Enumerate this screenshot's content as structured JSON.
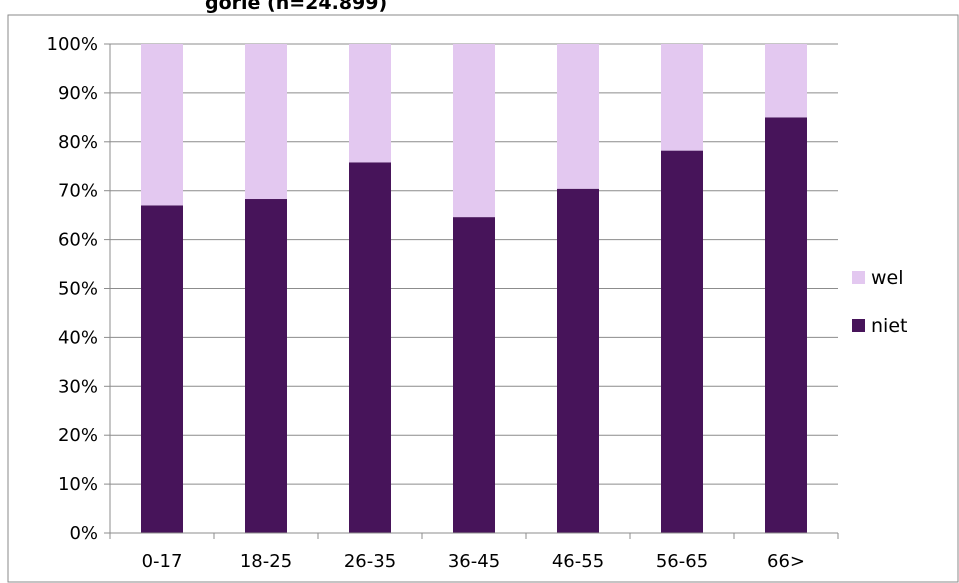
{
  "chart_data": {
    "type": "bar",
    "stacked": true,
    "title": "gorie (n=24.899)",
    "categories": [
      "0-17",
      "18-25",
      "26-35",
      "36-45",
      "46-55",
      "56-65",
      "66>"
    ],
    "series": [
      {
        "name": "niet",
        "values": [
          67,
          68.3,
          75.8,
          64.6,
          70.4,
          78.2,
          85
        ],
        "color": "#47145a"
      },
      {
        "name": "wel",
        "values": [
          33,
          31.7,
          24.2,
          35.4,
          29.6,
          21.8,
          15
        ],
        "color": "#e3c8f0"
      }
    ],
    "y_ticks": [
      "0%",
      "10%",
      "20%",
      "30%",
      "40%",
      "50%",
      "60%",
      "70%",
      "80%",
      "90%",
      "100%"
    ],
    "ylim": [
      0,
      100
    ],
    "grid": true,
    "legend_position": "right"
  }
}
